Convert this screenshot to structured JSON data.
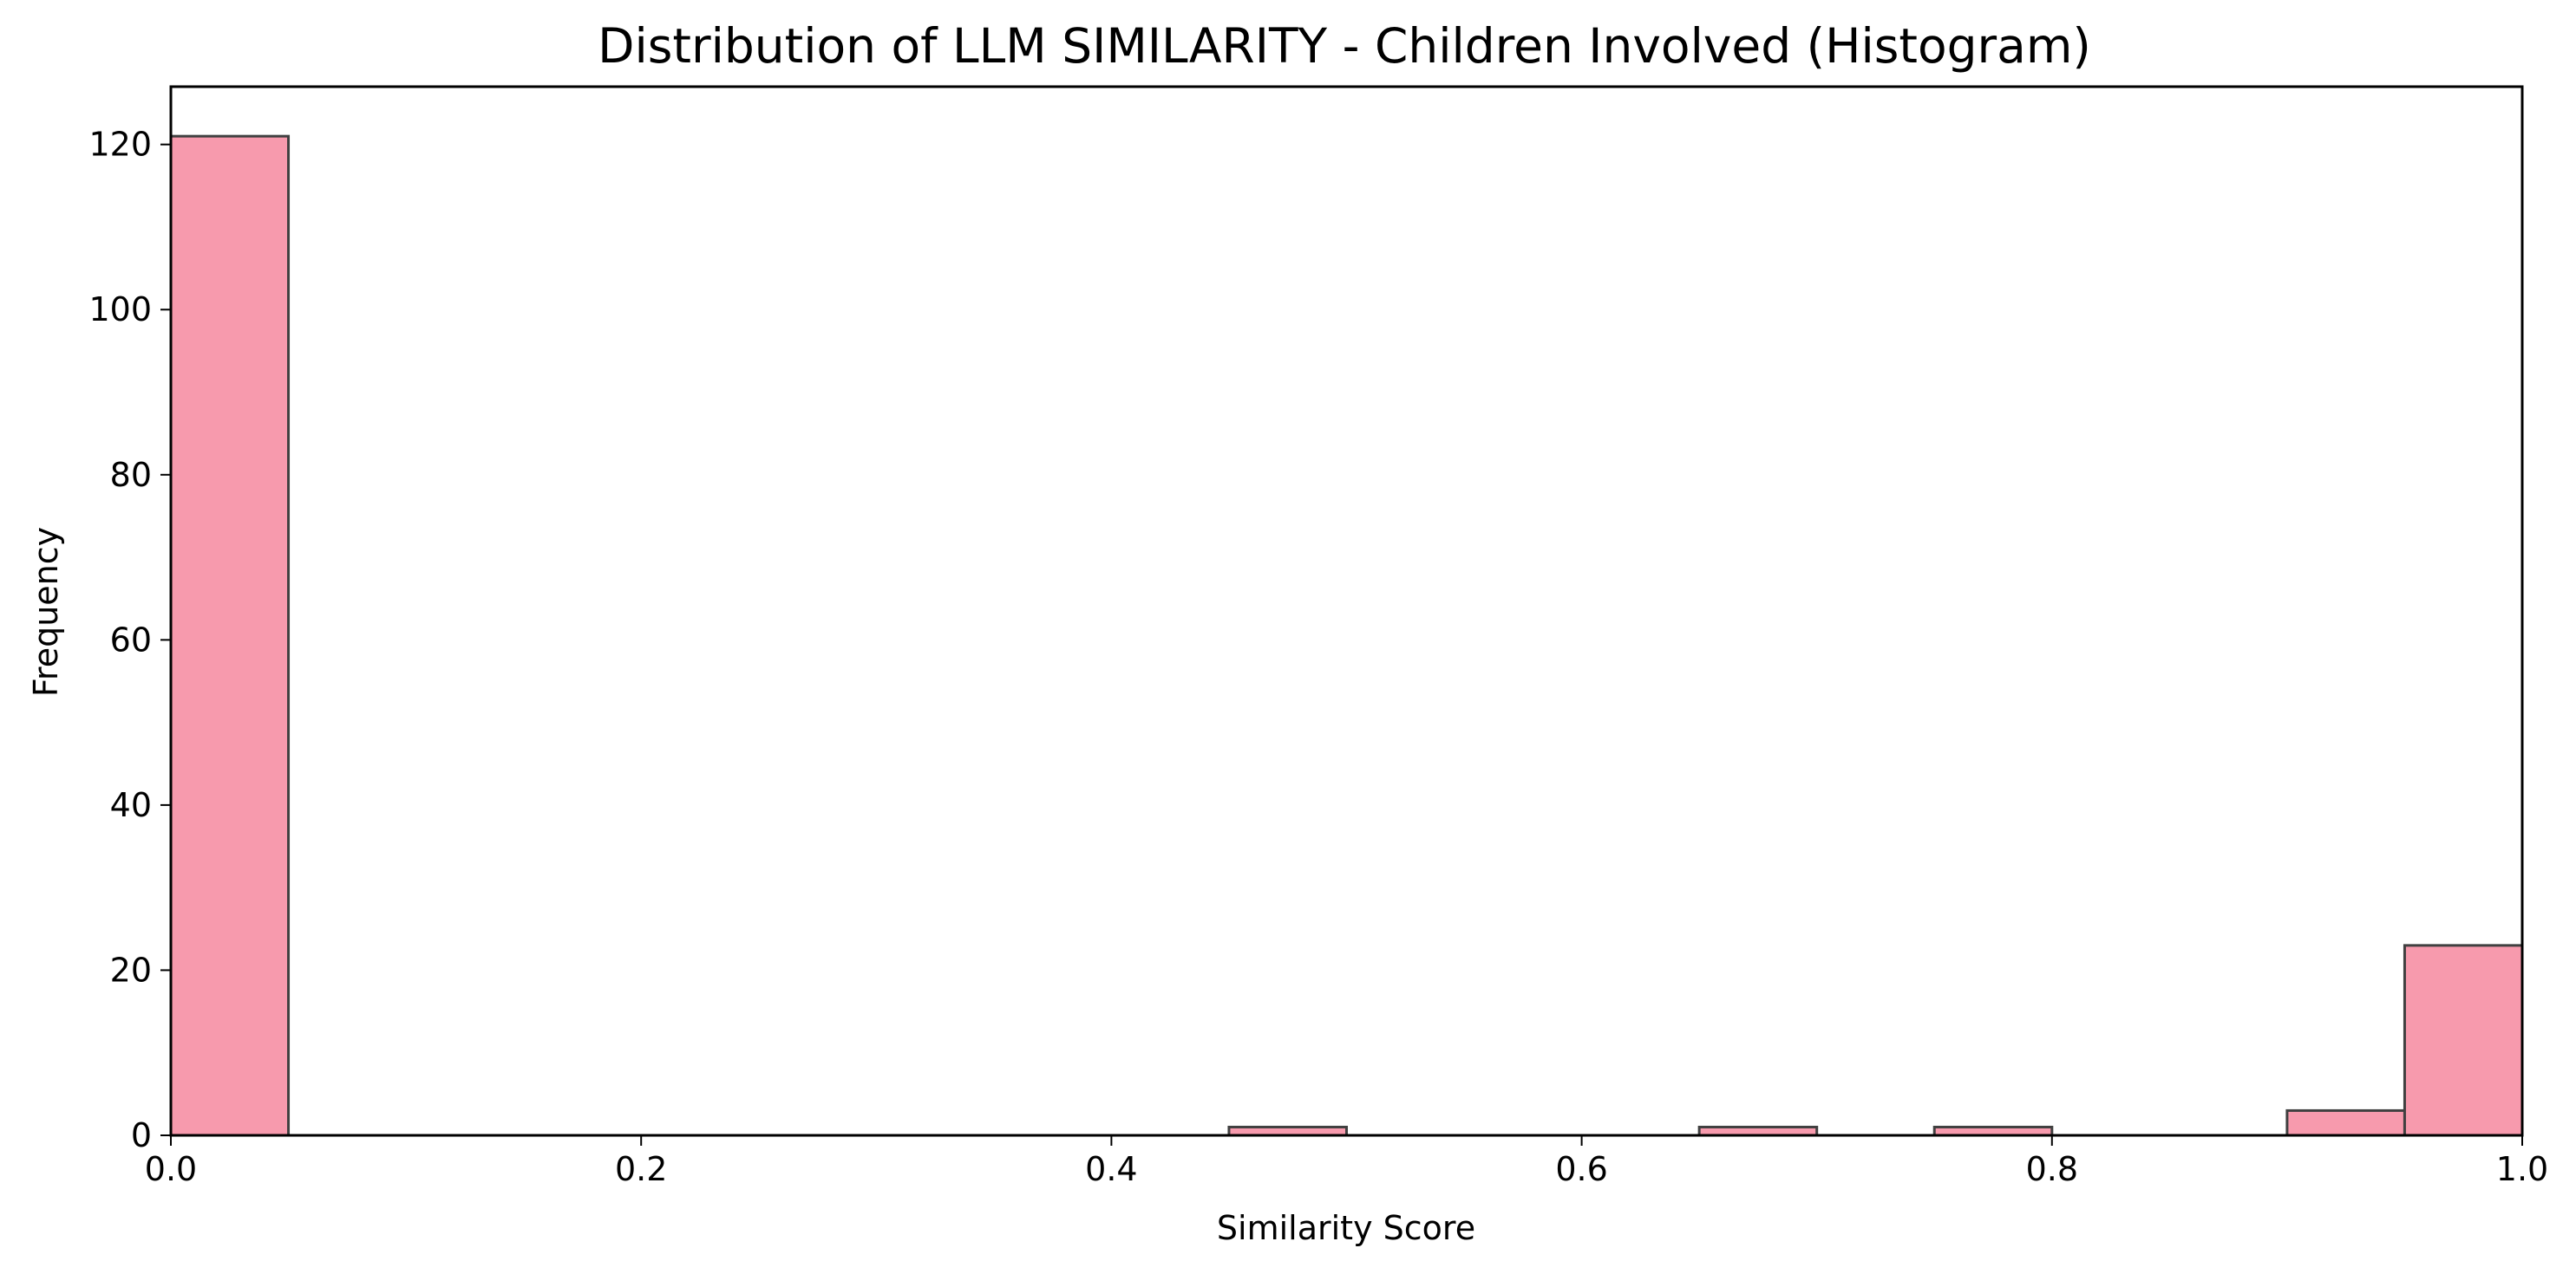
{
  "chart_data": {
    "type": "bar",
    "title": "Distribution of LLM SIMILARITY - Children Involved (Histogram)",
    "xlabel": "Similarity Score",
    "ylabel": "Frequency",
    "xlim": [
      0.0,
      1.0
    ],
    "ylim": [
      0,
      127
    ],
    "xticks": [
      "0.0",
      "0.2",
      "0.4",
      "0.6",
      "0.8",
      "1.0"
    ],
    "yticks": [
      "0",
      "20",
      "40",
      "60",
      "80",
      "100",
      "120"
    ],
    "bins": [
      {
        "start": 0.0,
        "end": 0.05,
        "count": 121
      },
      {
        "start": 0.45,
        "end": 0.5,
        "count": 1
      },
      {
        "start": 0.65,
        "end": 0.7,
        "count": 1
      },
      {
        "start": 0.75,
        "end": 0.8,
        "count": 1
      },
      {
        "start": 0.9,
        "end": 0.95,
        "count": 3
      },
      {
        "start": 0.95,
        "end": 1.0,
        "count": 23
      }
    ],
    "bar_color": "#f79aad",
    "edge_color": "#404040",
    "grid": false,
    "legend": "none"
  }
}
